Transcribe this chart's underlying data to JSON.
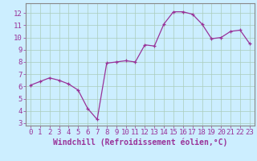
{
  "x": [
    0,
    1,
    2,
    3,
    4,
    5,
    6,
    7,
    8,
    9,
    10,
    11,
    12,
    13,
    14,
    15,
    16,
    17,
    18,
    19,
    20,
    21,
    22,
    23
  ],
  "y": [
    6.1,
    6.4,
    6.7,
    6.5,
    6.2,
    5.7,
    4.2,
    3.3,
    7.9,
    8.0,
    8.1,
    8.0,
    9.4,
    9.3,
    11.1,
    12.1,
    12.1,
    11.9,
    11.1,
    9.9,
    10.0,
    10.5,
    10.6,
    9.5
  ],
  "line_color": "#993399",
  "marker": "+",
  "marker_size": 3,
  "bg_color": "#cceeff",
  "grid_color": "#aaccbb",
  "xlabel": "Windchill (Refroidissement éolien,°C)",
  "ylabel_ticks": [
    3,
    4,
    5,
    6,
    7,
    8,
    9,
    10,
    11,
    12
  ],
  "xlim": [
    -0.5,
    23.5
  ],
  "ylim": [
    2.8,
    12.8
  ],
  "xlabel_fontsize": 7,
  "tick_fontsize": 6.5,
  "spine_color": "#888888"
}
